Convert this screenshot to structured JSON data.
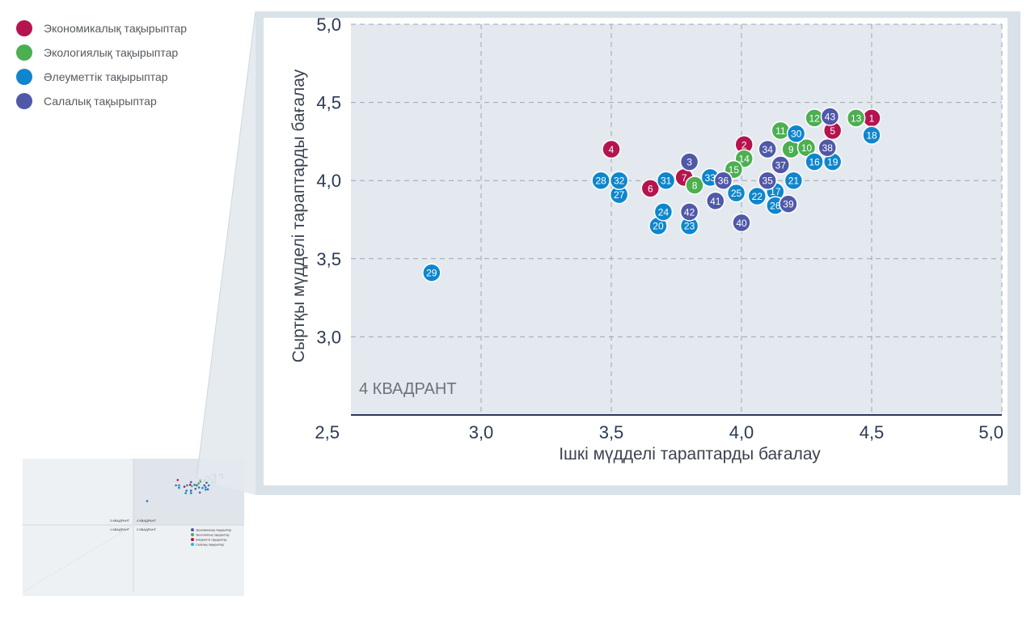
{
  "legend": {
    "items": [
      {
        "label": "Экономикалық тақырыптар",
        "color": "#b5144f"
      },
      {
        "label": "Экологиялық тақырыптар",
        "color": "#4caf50"
      },
      {
        "label": "Әлеуметтік тақырыптар",
        "color": "#0f86cc"
      },
      {
        "label": "Салалық тақырыптар",
        "color": "#5058a8"
      }
    ]
  },
  "thumbnail": {
    "quadrants": [
      "3 КВАДРАНТ",
      "4 КВАДРАНТ",
      "1 КВАДРАНТ",
      "2 КВАДРАНТ"
    ],
    "legend": [
      "Экономикалық тақырыптар",
      "Экологиялық тақырыптар",
      "Әлеуметтік тақырыптар",
      "Салалық тақырыптар"
    ]
  },
  "chart_data": {
    "type": "scatter",
    "title": "",
    "xlabel": "Ішкі мүдделі тараптарды бағалау",
    "ylabel": "Сыртқы мүдделі тараптарды бағалау",
    "xlim": [
      2.5,
      5.0
    ],
    "ylim": [
      2.5,
      5.0
    ],
    "xticks": [
      "2,5",
      "3,0",
      "3,5",
      "4,0",
      "4,5",
      "5,0"
    ],
    "yticks": [
      "3,0",
      "3,5",
      "4,0",
      "4,5",
      "5,0"
    ],
    "grid": true,
    "annotation": "4 КВАДРАНТ",
    "series": [
      {
        "color": "#b5144f",
        "points": [
          {
            "id": "1",
            "x": 4.5,
            "y": 4.4
          },
          {
            "id": "2",
            "x": 4.01,
            "y": 4.23
          },
          {
            "id": "4",
            "x": 3.5,
            "y": 4.2
          },
          {
            "id": "5",
            "x": 4.35,
            "y": 4.32
          },
          {
            "id": "6",
            "x": 3.65,
            "y": 3.95
          },
          {
            "id": "7",
            "x": 3.78,
            "y": 4.02
          }
        ]
      },
      {
        "color": "#4caf50",
        "points": [
          {
            "id": "8",
            "x": 3.82,
            "y": 3.97
          },
          {
            "id": "9",
            "x": 4.19,
            "y": 4.2
          },
          {
            "id": "10",
            "x": 4.25,
            "y": 4.21
          },
          {
            "id": "11",
            "x": 4.15,
            "y": 4.32
          },
          {
            "id": "12",
            "x": 4.28,
            "y": 4.4
          },
          {
            "id": "13",
            "x": 4.44,
            "y": 4.4
          },
          {
            "id": "14",
            "x": 4.01,
            "y": 4.14
          },
          {
            "id": "15",
            "x": 3.97,
            "y": 4.07
          }
        ]
      },
      {
        "color": "#0f86cc",
        "points": [
          {
            "id": "16",
            "x": 4.28,
            "y": 4.12
          },
          {
            "id": "17",
            "x": 4.13,
            "y": 3.93
          },
          {
            "id": "18",
            "x": 4.5,
            "y": 4.29
          },
          {
            "id": "19",
            "x": 4.35,
            "y": 4.12
          },
          {
            "id": "20",
            "x": 3.68,
            "y": 3.71
          },
          {
            "id": "21",
            "x": 4.2,
            "y": 4.0
          },
          {
            "id": "22",
            "x": 4.06,
            "y": 3.9
          },
          {
            "id": "23",
            "x": 3.8,
            "y": 3.71
          },
          {
            "id": "24",
            "x": 3.7,
            "y": 3.8
          },
          {
            "id": "25",
            "x": 3.98,
            "y": 3.92
          },
          {
            "id": "26",
            "x": 4.13,
            "y": 3.84
          },
          {
            "id": "27",
            "x": 3.53,
            "y": 3.91
          },
          {
            "id": "28",
            "x": 3.46,
            "y": 4.0
          },
          {
            "id": "29",
            "x": 2.81,
            "y": 3.41
          },
          {
            "id": "30",
            "x": 4.21,
            "y": 4.3
          },
          {
            "id": "31",
            "x": 3.71,
            "y": 4.0
          },
          {
            "id": "32",
            "x": 3.53,
            "y": 4.0
          },
          {
            "id": "33",
            "x": 3.88,
            "y": 4.02
          }
        ]
      },
      {
        "color": "#5058a8",
        "points": [
          {
            "id": "3",
            "x": 3.8,
            "y": 4.12
          },
          {
            "id": "34",
            "x": 4.1,
            "y": 4.2
          },
          {
            "id": "35",
            "x": 4.1,
            "y": 4.0
          },
          {
            "id": "36",
            "x": 3.93,
            "y": 4.0
          },
          {
            "id": "37",
            "x": 4.15,
            "y": 4.1
          },
          {
            "id": "38",
            "x": 4.33,
            "y": 4.21
          },
          {
            "id": "39",
            "x": 4.18,
            "y": 3.85
          },
          {
            "id": "40",
            "x": 4.0,
            "y": 3.73
          },
          {
            "id": "41",
            "x": 3.9,
            "y": 3.87
          },
          {
            "id": "42",
            "x": 3.8,
            "y": 3.8
          },
          {
            "id": "43",
            "x": 4.34,
            "y": 4.41
          }
        ]
      }
    ]
  }
}
